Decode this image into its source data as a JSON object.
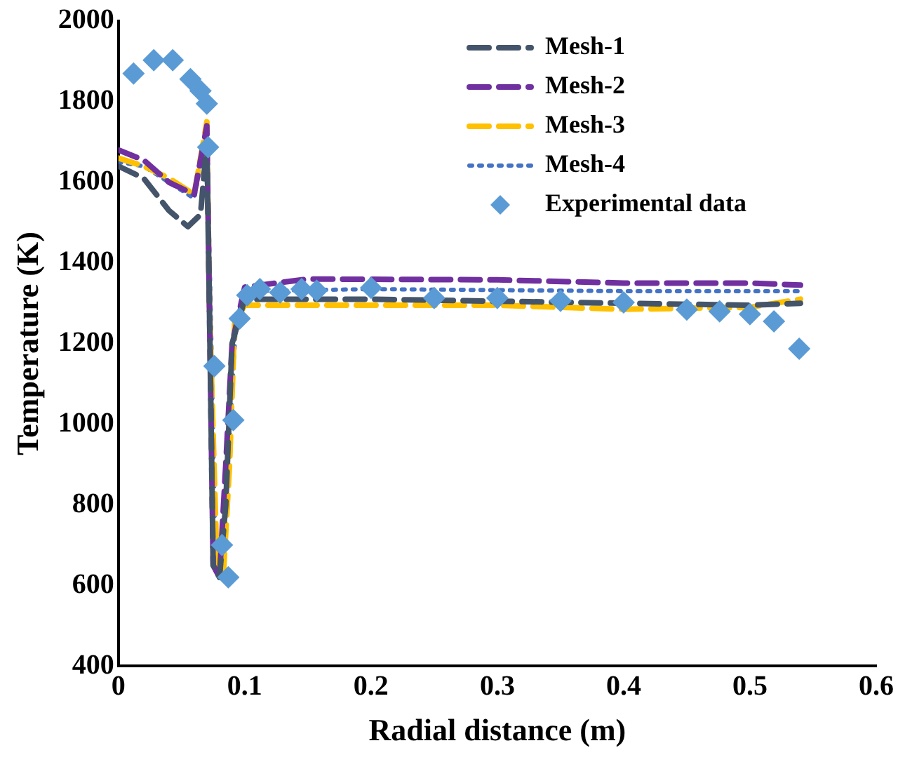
{
  "chart_data": {
    "type": "line",
    "xlabel": "Radial distance (m)",
    "ylabel": "Temperature (K)",
    "xlim": [
      0,
      0.6
    ],
    "xticks": [
      0,
      0.1,
      0.2,
      0.3,
      0.4,
      0.5,
      0.6
    ],
    "ylim": [
      400,
      2000
    ],
    "yticks": [
      400,
      600,
      800,
      1000,
      1200,
      1400,
      1600,
      1800,
      2000
    ],
    "grid": false,
    "legend": "top right",
    "series": [
      {
        "name": "Mesh-1",
        "color": "#44546a",
        "line_style": "dashed",
        "marker": "none",
        "x": [
          0,
          0.02,
          0.04,
          0.055,
          0.065,
          0.07,
          0.072,
          0.075,
          0.08,
          0.085,
          0.09,
          0.1,
          0.2,
          0.3,
          0.4,
          0.5,
          0.54
        ],
        "values": [
          1640,
          1610,
          1530,
          1490,
          1520,
          1700,
          1300,
          650,
          620,
          800,
          1200,
          1310,
          1310,
          1305,
          1300,
          1295,
          1300
        ]
      },
      {
        "name": "Mesh-2",
        "color": "#7030a0",
        "line_style": "dashed",
        "marker": "none",
        "x": [
          0,
          0.02,
          0.04,
          0.06,
          0.07,
          0.072,
          0.075,
          0.08,
          0.085,
          0.09,
          0.1,
          0.15,
          0.3,
          0.4,
          0.5,
          0.54
        ],
        "values": [
          1680,
          1655,
          1600,
          1570,
          1740,
          1300,
          650,
          620,
          900,
          1200,
          1340,
          1360,
          1358,
          1350,
          1350,
          1345
        ]
      },
      {
        "name": "Mesh-3",
        "color": "#ffc000",
        "line_style": "dashed",
        "marker": "none",
        "x": [
          0,
          0.02,
          0.04,
          0.06,
          0.07,
          0.072,
          0.078,
          0.083,
          0.088,
          0.092,
          0.1,
          0.3,
          0.4,
          0.5,
          0.54
        ],
        "values": [
          1660,
          1640,
          1610,
          1570,
          1750,
          1300,
          650,
          620,
          900,
          1250,
          1295,
          1295,
          1285,
          1290,
          1310
        ]
      },
      {
        "name": "Mesh-4",
        "color": "#4472c4",
        "line_style": "dotted",
        "marker": "none",
        "x": [
          0,
          0.02,
          0.04,
          0.06,
          0.07,
          0.073,
          0.077,
          0.082,
          0.087,
          0.093,
          0.1,
          0.2,
          0.4,
          0.54
        ],
        "values": [
          1650,
          1640,
          1600,
          1560,
          1720,
          1300,
          650,
          620,
          900,
          1250,
          1330,
          1335,
          1330,
          1330
        ]
      },
      {
        "name": "Experimental data",
        "type": "scatter",
        "color": "#5b9bd5",
        "marker": "diamond",
        "x": [
          0.012,
          0.028,
          0.043,
          0.057,
          0.065,
          0.07,
          0.071,
          0.076,
          0.082,
          0.087,
          0.091,
          0.096,
          0.102,
          0.112,
          0.128,
          0.145,
          0.157,
          0.2,
          0.25,
          0.3,
          0.35,
          0.4,
          0.45,
          0.476,
          0.5,
          0.519,
          0.539
        ],
        "values": [
          1870,
          1903,
          1903,
          1856,
          1827,
          1795,
          1687,
          1144,
          700,
          620,
          1010,
          1262,
          1320,
          1335,
          1327,
          1335,
          1331,
          1338,
          1313,
          1313,
          1306,
          1302,
          1284,
          1280,
          1273,
          1255,
          1187
        ]
      }
    ]
  }
}
